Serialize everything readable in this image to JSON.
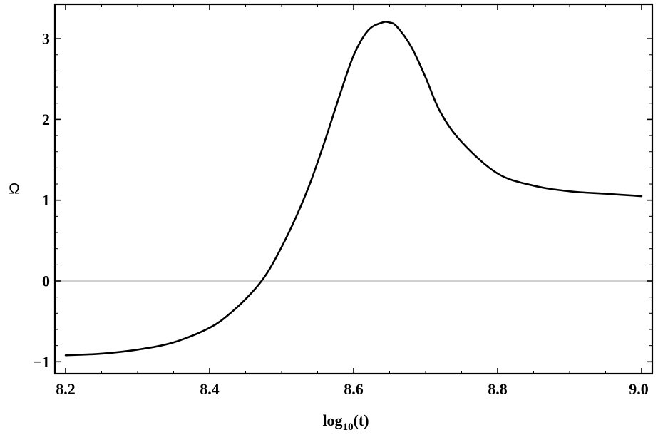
{
  "chart_data": {
    "type": "line",
    "title": "",
    "xlabel": "log10(t)",
    "xlabel_parts": {
      "base": "log",
      "sub": "10",
      "arg": "(t)"
    },
    "ylabel": "Ω",
    "xlim": [
      8.2,
      9.0
    ],
    "ylim": [
      -1.0,
      3.0
    ],
    "x_ticks": [
      8.2,
      8.4,
      8.6,
      8.8,
      9.0
    ],
    "x_tick_labels": [
      "8.2",
      "8.4",
      "8.6",
      "8.8",
      "9.0"
    ],
    "y_ticks": [
      -1,
      0,
      1,
      2,
      3
    ],
    "y_tick_labels": [
      "−1",
      "0",
      "1",
      "2",
      "3"
    ],
    "zero_line": true,
    "grid": false,
    "legend": "none",
    "series": [
      {
        "color": "#000000",
        "x": [
          8.2,
          8.25,
          8.3,
          8.35,
          8.4,
          8.43,
          8.46,
          8.48,
          8.5,
          8.52,
          8.54,
          8.56,
          8.58,
          8.6,
          8.62,
          8.64,
          8.65,
          8.66,
          8.68,
          8.7,
          8.72,
          8.75,
          8.8,
          8.85,
          8.9,
          8.95,
          9.0
        ],
        "y": [
          -0.92,
          -0.9,
          -0.85,
          -0.76,
          -0.58,
          -0.39,
          -0.13,
          0.1,
          0.42,
          0.79,
          1.22,
          1.73,
          2.28,
          2.79,
          3.1,
          3.2,
          3.2,
          3.15,
          2.9,
          2.52,
          2.1,
          1.72,
          1.33,
          1.18,
          1.11,
          1.08,
          1.05
        ]
      }
    ],
    "colors": {
      "curve": "#000000",
      "frame": "#000000",
      "zero_line": "#b3b3b3",
      "background": "#ffffff"
    }
  }
}
